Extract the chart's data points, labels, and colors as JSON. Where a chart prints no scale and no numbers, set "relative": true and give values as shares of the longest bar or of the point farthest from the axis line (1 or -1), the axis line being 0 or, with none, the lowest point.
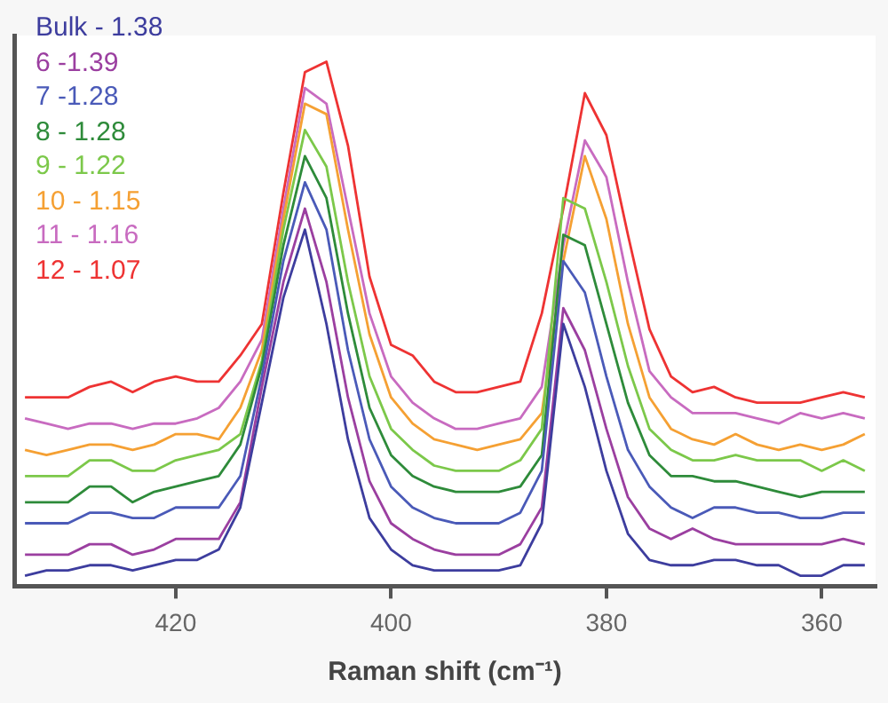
{
  "chart_data": {
    "type": "line",
    "xlabel": "Raman shift (cm⁻¹)",
    "relative": true,
    "legend": "top left",
    "marker": "none",
    "grid": false,
    "xlim": [
      435,
      355
    ],
    "xticks": [
      420,
      400,
      380,
      360
    ],
    "x": [
      434,
      432,
      430,
      428,
      426,
      424,
      422,
      420,
      418,
      416,
      414,
      412,
      410,
      408,
      406,
      404,
      402,
      400,
      398,
      396,
      394,
      392,
      390,
      388,
      386,
      384,
      382,
      380,
      378,
      376,
      374,
      372,
      370,
      368,
      366,
      364,
      362,
      360,
      358,
      356
    ],
    "series": [
      {
        "name": "Bulk - 1.38",
        "color": "#3d3d9e",
        "values": [
          0.02,
          0.03,
          0.03,
          0.04,
          0.04,
          0.03,
          0.04,
          0.05,
          0.05,
          0.07,
          0.15,
          0.35,
          0.55,
          0.68,
          0.5,
          0.28,
          0.13,
          0.07,
          0.04,
          0.03,
          0.03,
          0.03,
          0.03,
          0.04,
          0.12,
          0.5,
          0.38,
          0.22,
          0.1,
          0.05,
          0.04,
          0.04,
          0.05,
          0.05,
          0.04,
          0.04,
          0.02,
          0.02,
          0.04,
          0.04
        ]
      },
      {
        "name": "6 -1.39",
        "color": "#9b3fa0",
        "values": [
          0.06,
          0.06,
          0.06,
          0.08,
          0.08,
          0.06,
          0.07,
          0.09,
          0.09,
          0.09,
          0.16,
          0.38,
          0.58,
          0.72,
          0.58,
          0.36,
          0.2,
          0.12,
          0.09,
          0.07,
          0.06,
          0.06,
          0.06,
          0.08,
          0.15,
          0.53,
          0.45,
          0.3,
          0.17,
          0.11,
          0.09,
          0.11,
          0.09,
          0.08,
          0.08,
          0.08,
          0.08,
          0.08,
          0.09,
          0.08
        ]
      },
      {
        "name": "7 -1.28",
        "color": "#4a5ab8",
        "values": [
          0.12,
          0.12,
          0.12,
          0.14,
          0.14,
          0.13,
          0.13,
          0.15,
          0.15,
          0.15,
          0.21,
          0.4,
          0.62,
          0.77,
          0.68,
          0.45,
          0.28,
          0.19,
          0.15,
          0.13,
          0.12,
          0.12,
          0.12,
          0.14,
          0.22,
          0.62,
          0.56,
          0.4,
          0.26,
          0.19,
          0.15,
          0.13,
          0.15,
          0.15,
          0.14,
          0.14,
          0.13,
          0.13,
          0.14,
          0.14
        ]
      },
      {
        "name": "8 - 1.28",
        "color": "#2e8b3a",
        "values": [
          0.16,
          0.16,
          0.16,
          0.19,
          0.19,
          0.16,
          0.18,
          0.19,
          0.2,
          0.21,
          0.27,
          0.42,
          0.65,
          0.82,
          0.74,
          0.52,
          0.34,
          0.25,
          0.21,
          0.19,
          0.18,
          0.18,
          0.18,
          0.19,
          0.25,
          0.67,
          0.65,
          0.5,
          0.35,
          0.25,
          0.21,
          0.21,
          0.2,
          0.2,
          0.19,
          0.18,
          0.17,
          0.18,
          0.18,
          0.18
        ]
      },
      {
        "name": "9 - 1.22",
        "color": "#7cc84a",
        "values": [
          0.21,
          0.21,
          0.21,
          0.24,
          0.24,
          0.22,
          0.22,
          0.24,
          0.25,
          0.26,
          0.29,
          0.43,
          0.68,
          0.87,
          0.8,
          0.58,
          0.4,
          0.3,
          0.26,
          0.23,
          0.22,
          0.22,
          0.22,
          0.24,
          0.3,
          0.74,
          0.72,
          0.58,
          0.42,
          0.3,
          0.26,
          0.24,
          0.24,
          0.25,
          0.24,
          0.24,
          0.24,
          0.22,
          0.24,
          0.22
        ]
      },
      {
        "name": "10 - 1.15",
        "color": "#f5a033",
        "values": [
          0.26,
          0.25,
          0.26,
          0.27,
          0.27,
          0.26,
          0.27,
          0.29,
          0.29,
          0.28,
          0.34,
          0.45,
          0.7,
          0.92,
          0.9,
          0.68,
          0.48,
          0.36,
          0.31,
          0.28,
          0.27,
          0.26,
          0.27,
          0.28,
          0.33,
          0.62,
          0.82,
          0.7,
          0.5,
          0.36,
          0.3,
          0.28,
          0.27,
          0.29,
          0.27,
          0.26,
          0.27,
          0.26,
          0.27,
          0.29
        ]
      },
      {
        "name": "11 - 1.16",
        "color": "#c86bc0",
        "values": [
          0.32,
          0.31,
          0.3,
          0.31,
          0.31,
          0.3,
          0.31,
          0.31,
          0.32,
          0.34,
          0.39,
          0.47,
          0.72,
          0.95,
          0.92,
          0.72,
          0.52,
          0.4,
          0.35,
          0.32,
          0.3,
          0.3,
          0.31,
          0.32,
          0.38,
          0.65,
          0.85,
          0.78,
          0.58,
          0.41,
          0.36,
          0.33,
          0.33,
          0.33,
          0.32,
          0.31,
          0.33,
          0.32,
          0.33,
          0.32
        ]
      },
      {
        "name": "12 - 1.07",
        "color": "#ee3333",
        "values": [
          0.36,
          0.36,
          0.36,
          0.38,
          0.39,
          0.37,
          0.39,
          0.4,
          0.39,
          0.39,
          0.44,
          0.5,
          0.75,
          0.98,
          1.0,
          0.84,
          0.59,
          0.46,
          0.44,
          0.39,
          0.37,
          0.37,
          0.38,
          0.39,
          0.52,
          0.72,
          0.94,
          0.86,
          0.67,
          0.49,
          0.4,
          0.37,
          0.38,
          0.36,
          0.35,
          0.35,
          0.35,
          0.36,
          0.37,
          0.36
        ]
      }
    ]
  }
}
